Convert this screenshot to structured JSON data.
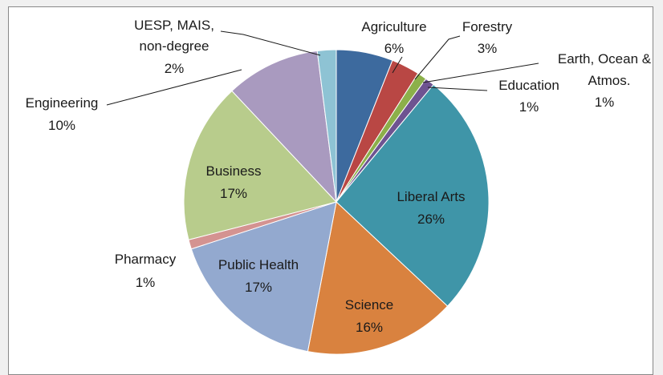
{
  "chart_data": {
    "type": "pie",
    "slices": [
      {
        "label": "Agriculture",
        "value": 6,
        "pct_label": "6%",
        "color": "#3d6a9e"
      },
      {
        "label": "Forestry",
        "value": 3,
        "pct_label": "3%",
        "color": "#b94744"
      },
      {
        "label": "Earth, Ocean & Atmos.",
        "value": 1,
        "pct_label": "1%",
        "color": "#8cb04a"
      },
      {
        "label": "Education",
        "value": 1,
        "pct_label": "1%",
        "color": "#6e5391"
      },
      {
        "label": "Liberal Arts",
        "value": 26,
        "pct_label": "26%",
        "color": "#3f95a8"
      },
      {
        "label": "Science",
        "value": 16,
        "pct_label": "16%",
        "color": "#d9823f"
      },
      {
        "label": "Public Health",
        "value": 17,
        "pct_label": "17%",
        "color": "#93a9cf"
      },
      {
        "label": "Pharmacy",
        "value": 1,
        "pct_label": "1%",
        "color": "#d49391"
      },
      {
        "label": "Business",
        "value": 17,
        "pct_label": "17%",
        "color": "#b8cc8c"
      },
      {
        "label": "Engineering",
        "value": 10,
        "pct_label": "10%",
        "color": "#a99abf"
      },
      {
        "label": "UESP, MAIS, non-degree",
        "value": 2,
        "pct_label": "2%",
        "color": "#8ec3d4"
      }
    ]
  }
}
